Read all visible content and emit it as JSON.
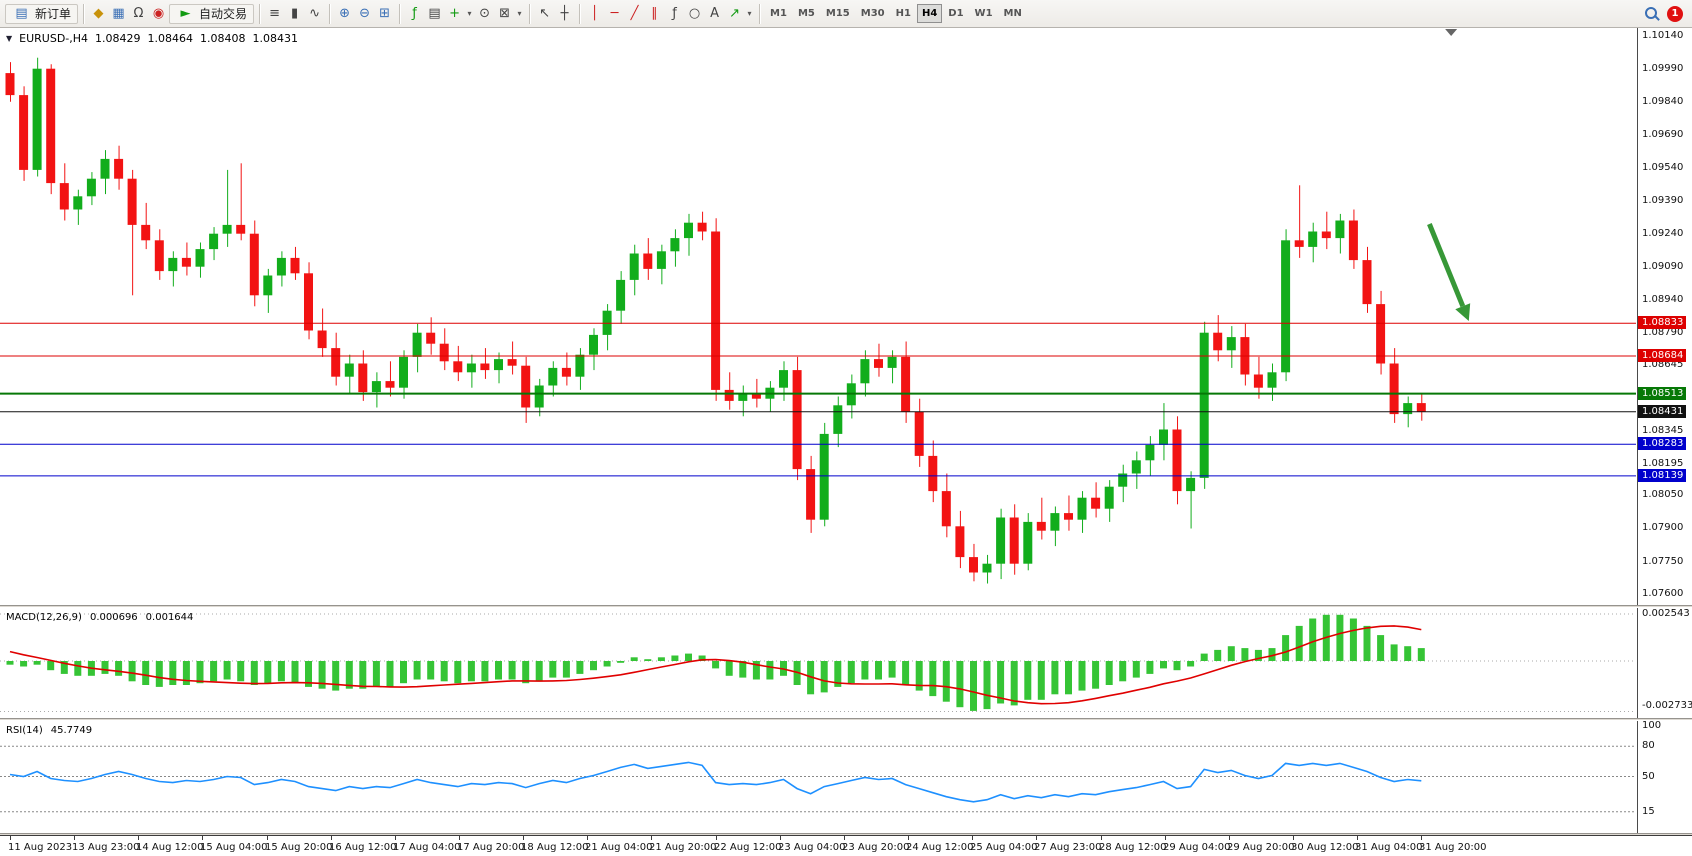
{
  "toolbar": {
    "new_order_label": "新订单",
    "autotrading_label": "自动交易",
    "timeframes": [
      "M1",
      "M5",
      "M15",
      "M30",
      "H1",
      "H4",
      "D1",
      "W1",
      "MN"
    ],
    "active_timeframe": "H4",
    "notification_count": "1"
  },
  "icons": {
    "new_order": "▤",
    "trophy": "◆",
    "charts": "▦",
    "headset": "Ω",
    "phone": "◉",
    "autotrading_play": "►",
    "bar_chart": "≡",
    "candle_chart": "▮",
    "line_chart": "∿",
    "zoom_in": "⊕",
    "zoom_out": "⊖",
    "tile_windows": "⊞",
    "indicators": "ƒ",
    "indicator_list": "▤",
    "add_indicator": "+",
    "clock": "⊙",
    "mail": "⊠",
    "cursor": "↖",
    "crosshair": "┼",
    "vline": "│",
    "hline": "─",
    "trendline": "╱",
    "channel": "∥",
    "fibonacci": "ƒ",
    "shapes": "○",
    "text": "A",
    "arrows_tool": "↗",
    "dropdown": "▾",
    "collapse_marker": "▼"
  },
  "chart_header": {
    "collapse_marker": "▼",
    "symbol_period": "EURUSD-,H4",
    "open": "1.08429",
    "high": "1.08464",
    "low": "1.08408",
    "close": "1.08431"
  },
  "price_axis_labels": [
    "1.10140",
    "1.09990",
    "1.09840",
    "1.09690",
    "1.09540",
    "1.09390",
    "1.09240",
    "1.09090",
    "1.08940",
    "1.08790",
    "1.08645",
    "1.08345",
    "1.08195",
    "1.08050",
    "1.07900",
    "1.07750",
    "1.07600"
  ],
  "time_axis_labels": [
    "11 Aug 2023",
    "13 Aug 23:00",
    "14 Aug 12:00",
    "15 Aug 04:00",
    "15 Aug 20:00",
    "16 Aug 12:00",
    "17 Aug 04:00",
    "17 Aug 20:00",
    "18 Aug 12:00",
    "21 Aug 04:00",
    "21 Aug 20:00",
    "22 Aug 12:00",
    "23 Aug 04:00",
    "23 Aug 20:00",
    "24 Aug 12:00",
    "25 Aug 04:00",
    "27 Aug 23:00",
    "28 Aug 12:00",
    "29 Aug 04:00",
    "29 Aug 20:00",
    "30 Aug 12:00",
    "31 Aug 04:00",
    "31 Aug 20:00"
  ],
  "macd_panel": {
    "label": "MACD(12,26,9)",
    "value": "0.000696",
    "signal_value": "0.001644",
    "scale_top": "0.002543",
    "scale_bottom": "-0.002733"
  },
  "rsi_panel": {
    "label": "RSI(14)",
    "value": "45.7749",
    "scale_labels": [
      "100",
      "80",
      "50",
      "15"
    ]
  },
  "chart_data": [
    {
      "type": "candlestick",
      "symbol": "EURUSD-",
      "timeframe": "H4",
      "up_color": "#12ad1c",
      "down_color": "#f21313",
      "ylim": [
        1.0755,
        1.1014
      ],
      "levels": [
        {
          "label": "1.08833",
          "price": 1.08833,
          "color": "#dd0000",
          "width": 1
        },
        {
          "label": "1.08684",
          "price": 1.08684,
          "color": "#dd0000",
          "width": 1
        },
        {
          "label": "1.08513",
          "price": 1.08513,
          "color": "#067806",
          "width": 2
        },
        {
          "label": "1.08431",
          "price": 1.08431,
          "color": "#111111",
          "width": 1
        },
        {
          "label": "1.08283",
          "price": 1.08283,
          "color": "#0000cc",
          "width": 1
        },
        {
          "label": "1.08139",
          "price": 1.08139,
          "color": "#0000cc",
          "width": 1
        }
      ],
      "annotations": [
        {
          "type": "arrow",
          "from_index": 104.6,
          "from_price": 1.09284,
          "to_index": 107.5,
          "to_price": 1.08843,
          "color": "#379837"
        }
      ],
      "shift_marker_index": 106.2,
      "ohlc": [
        [
          1.0997,
          1.1002,
          1.0984,
          1.0987
        ],
        [
          1.0987,
          1.0991,
          1.0948,
          1.0953
        ],
        [
          1.0953,
          1.1004,
          1.095,
          1.0999
        ],
        [
          1.0999,
          1.1001,
          1.0942,
          1.0947
        ],
        [
          1.0947,
          1.0956,
          1.093,
          1.0935
        ],
        [
          1.0935,
          1.0944,
          1.0928,
          1.0941
        ],
        [
          1.0941,
          1.0952,
          1.0937,
          1.0949
        ],
        [
          1.0949,
          1.0962,
          1.0942,
          1.0958
        ],
        [
          1.0958,
          1.0964,
          1.0944,
          1.0949
        ],
        [
          1.0949,
          1.0953,
          1.0896,
          1.0928
        ],
        [
          1.0928,
          1.0938,
          1.0917,
          1.0921
        ],
        [
          1.0921,
          1.0926,
          1.0903,
          1.0907
        ],
        [
          1.0907,
          1.0916,
          1.09,
          1.0913
        ],
        [
          1.0913,
          1.092,
          1.0905,
          1.0909
        ],
        [
          1.0909,
          1.092,
          1.0904,
          1.0917
        ],
        [
          1.0917,
          1.0927,
          1.0912,
          1.0924
        ],
        [
          1.0924,
          1.0953,
          1.0918,
          1.0928
        ],
        [
          1.0928,
          1.0956,
          1.0921,
          1.0924
        ],
        [
          1.0924,
          1.093,
          1.0891,
          1.0896
        ],
        [
          1.0896,
          1.0908,
          1.0888,
          1.0905
        ],
        [
          1.0905,
          1.0916,
          1.09,
          1.0913
        ],
        [
          1.0913,
          1.0918,
          1.0903,
          1.0906
        ],
        [
          1.0906,
          1.0911,
          1.0876,
          1.088
        ],
        [
          1.088,
          1.089,
          1.0868,
          1.0872
        ],
        [
          1.0872,
          1.0879,
          1.0855,
          1.0859
        ],
        [
          1.0859,
          1.0869,
          1.0851,
          1.0865
        ],
        [
          1.0865,
          1.0871,
          1.0848,
          1.0852
        ],
        [
          1.0852,
          1.0861,
          1.0845,
          1.0857
        ],
        [
          1.0857,
          1.0866,
          1.085,
          1.0854
        ],
        [
          1.0854,
          1.0871,
          1.0849,
          1.0868
        ],
        [
          1.0868,
          1.0883,
          1.0861,
          1.0879
        ],
        [
          1.0879,
          1.0886,
          1.0869,
          1.0874
        ],
        [
          1.0874,
          1.0881,
          1.0862,
          1.0866
        ],
        [
          1.0866,
          1.0873,
          1.0857,
          1.0861
        ],
        [
          1.0861,
          1.0869,
          1.0854,
          1.0865
        ],
        [
          1.0865,
          1.0872,
          1.0858,
          1.0862
        ],
        [
          1.0862,
          1.087,
          1.0856,
          1.0867
        ],
        [
          1.0867,
          1.0875,
          1.086,
          1.0864
        ],
        [
          1.0864,
          1.0868,
          1.0838,
          1.0845
        ],
        [
          1.0845,
          1.0858,
          1.0841,
          1.0855
        ],
        [
          1.0855,
          1.0866,
          1.085,
          1.0863
        ],
        [
          1.0863,
          1.087,
          1.0855,
          1.0859
        ],
        [
          1.0859,
          1.0872,
          1.0853,
          1.0869
        ],
        [
          1.0869,
          1.0881,
          1.0862,
          1.0878
        ],
        [
          1.0878,
          1.0892,
          1.0871,
          1.0889
        ],
        [
          1.0889,
          1.0907,
          1.0883,
          1.0903
        ],
        [
          1.0903,
          1.0919,
          1.0896,
          1.0915
        ],
        [
          1.0915,
          1.0922,
          1.0903,
          1.0908
        ],
        [
          1.0908,
          1.0919,
          1.0901,
          1.0916
        ],
        [
          1.0916,
          1.0926,
          1.0909,
          1.0922
        ],
        [
          1.0922,
          1.0933,
          1.0914,
          1.0929
        ],
        [
          1.0929,
          1.0934,
          1.0921,
          1.0925
        ],
        [
          1.0925,
          1.0931,
          1.0848,
          1.0853
        ],
        [
          1.0853,
          1.0861,
          1.0844,
          1.0848
        ],
        [
          1.0848,
          1.0855,
          1.0841,
          1.0851
        ],
        [
          1.0851,
          1.0858,
          1.0845,
          1.0849
        ],
        [
          1.0849,
          1.0857,
          1.0843,
          1.0854
        ],
        [
          1.0854,
          1.0866,
          1.0848,
          1.0862
        ],
        [
          1.0862,
          1.0868,
          1.0812,
          1.0817
        ],
        [
          1.0817,
          1.0823,
          1.0788,
          1.0794
        ],
        [
          1.0794,
          1.0838,
          1.0791,
          1.0833
        ],
        [
          1.0833,
          1.085,
          1.0827,
          1.0846
        ],
        [
          1.0846,
          1.086,
          1.084,
          1.0856
        ],
        [
          1.0856,
          1.0871,
          1.085,
          1.0867
        ],
        [
          1.0867,
          1.0874,
          1.0859,
          1.0863
        ],
        [
          1.0863,
          1.0871,
          1.0856,
          1.0868
        ],
        [
          1.0868,
          1.0875,
          1.0838,
          1.0843
        ],
        [
          1.0843,
          1.0849,
          1.0818,
          1.0823
        ],
        [
          1.0823,
          1.083,
          1.0802,
          1.0807
        ],
        [
          1.0807,
          1.0815,
          1.0786,
          1.0791
        ],
        [
          1.0791,
          1.0798,
          1.0772,
          1.0777
        ],
        [
          1.0777,
          1.0783,
          1.0766,
          1.077
        ],
        [
          1.077,
          1.0778,
          1.0765,
          1.0774
        ],
        [
          1.0774,
          1.0799,
          1.0767,
          1.0795
        ],
        [
          1.0795,
          1.0801,
          1.0769,
          1.0774
        ],
        [
          1.0774,
          1.0797,
          1.0771,
          1.0793
        ],
        [
          1.0793,
          1.0804,
          1.0785,
          1.0789
        ],
        [
          1.0789,
          1.08,
          1.0782,
          1.0797
        ],
        [
          1.0797,
          1.0805,
          1.0789,
          1.0794
        ],
        [
          1.0794,
          1.0807,
          1.0788,
          1.0804
        ],
        [
          1.0804,
          1.0811,
          1.0795,
          1.0799
        ],
        [
          1.0799,
          1.0812,
          1.0793,
          1.0809
        ],
        [
          1.0809,
          1.0819,
          1.0802,
          1.0815
        ],
        [
          1.0815,
          1.0825,
          1.0808,
          1.0821
        ],
        [
          1.0821,
          1.0832,
          1.0814,
          1.0828
        ],
        [
          1.0828,
          1.0847,
          1.0821,
          1.0835
        ],
        [
          1.0835,
          1.0841,
          1.0801,
          1.0807
        ],
        [
          1.0807,
          1.0816,
          1.079,
          1.0813
        ],
        [
          1.0813,
          1.0884,
          1.0808,
          1.0879
        ],
        [
          1.0879,
          1.0887,
          1.0866,
          1.0871
        ],
        [
          1.0871,
          1.0882,
          1.0863,
          1.0877
        ],
        [
          1.0877,
          1.0883,
          1.0855,
          1.086
        ],
        [
          1.086,
          1.0868,
          1.0849,
          1.0854
        ],
        [
          1.0854,
          1.0865,
          1.0848,
          1.0861
        ],
        [
          1.0861,
          1.0926,
          1.0857,
          1.0921
        ],
        [
          1.0921,
          1.0946,
          1.0913,
          1.0918
        ],
        [
          1.0918,
          1.0929,
          1.0911,
          1.0925
        ],
        [
          1.0925,
          1.0934,
          1.0917,
          1.0922
        ],
        [
          1.0922,
          1.0933,
          1.0915,
          1.093
        ],
        [
          1.093,
          1.0935,
          1.0908,
          1.0912
        ],
        [
          1.0912,
          1.0918,
          1.0888,
          1.0892
        ],
        [
          1.0892,
          1.0898,
          1.086,
          1.0865
        ],
        [
          1.0865,
          1.0872,
          1.0838,
          1.0842
        ],
        [
          1.0842,
          1.085,
          1.0836,
          1.0847
        ],
        [
          1.0847,
          1.0851,
          1.0839,
          1.08431
        ]
      ]
    },
    {
      "type": "bar",
      "name": "MACD(12,26,9)",
      "color": "#35c435",
      "signal_color": "#e00000",
      "ylim": [
        -0.002733,
        0.002543
      ],
      "values": [
        -0.0002,
        -0.0003,
        -0.0002,
        -0.0005,
        -0.0007,
        -0.0008,
        -0.0008,
        -0.0007,
        -0.0008,
        -0.0011,
        -0.0013,
        -0.0014,
        -0.0013,
        -0.0013,
        -0.0012,
        -0.0011,
        -0.001,
        -0.0011,
        -0.0013,
        -0.0012,
        -0.0011,
        -0.0012,
        -0.0014,
        -0.0015,
        -0.0016,
        -0.0015,
        -0.0015,
        -0.0014,
        -0.0014,
        -0.0012,
        -0.001,
        -0.001,
        -0.0011,
        -0.0012,
        -0.0011,
        -0.0011,
        -0.001,
        -0.001,
        -0.0012,
        -0.0011,
        -0.0009,
        -0.0009,
        -0.0007,
        -0.0005,
        -0.0003,
        -0.0001,
        0.0002,
        0.0001,
        0.0002,
        0.0003,
        0.0004,
        0.0003,
        -0.0004,
        -0.0008,
        -0.0009,
        -0.001,
        -0.001,
        -0.0008,
        -0.0013,
        -0.0018,
        -0.0017,
        -0.0014,
        -0.0012,
        -0.001,
        -0.001,
        -0.0009,
        -0.0013,
        -0.0016,
        -0.0019,
        -0.0022,
        -0.0025,
        -0.0027,
        -0.0026,
        -0.0023,
        -0.0024,
        -0.0021,
        -0.0021,
        -0.0018,
        -0.0018,
        -0.0016,
        -0.0015,
        -0.0013,
        -0.0011,
        -0.0009,
        -0.0007,
        -0.0004,
        -0.0005,
        -0.0003,
        0.0004,
        0.0006,
        0.0008,
        0.0007,
        0.0006,
        0.0007,
        0.0014,
        0.0019,
        0.0023,
        0.0025,
        0.0025,
        0.0023,
        0.0019,
        0.0014,
        0.0009,
        0.0008,
        0.0007
      ]
    },
    {
      "type": "line",
      "name": "RSI(14)",
      "color": "#1E90FF",
      "ylim": [
        0,
        100
      ],
      "levels": [
        80,
        50,
        15
      ],
      "values": [
        52,
        50,
        55,
        48,
        46,
        45,
        48,
        52,
        55,
        52,
        48,
        45,
        44,
        46,
        45,
        47,
        50,
        49,
        42,
        44,
        47,
        45,
        40,
        38,
        36,
        40,
        38,
        40,
        39,
        43,
        47,
        44,
        42,
        40,
        43,
        42,
        44,
        43,
        39,
        43,
        46,
        44,
        48,
        51,
        55,
        59,
        62,
        58,
        60,
        62,
        64,
        61,
        44,
        42,
        43,
        42,
        44,
        47,
        38,
        33,
        40,
        43,
        46,
        49,
        47,
        48,
        42,
        38,
        34,
        30,
        27,
        25,
        27,
        32,
        28,
        31,
        29,
        32,
        30,
        33,
        32,
        35,
        37,
        39,
        42,
        45,
        38,
        40,
        57,
        54,
        56,
        51,
        48,
        51,
        63,
        61,
        63,
        61,
        63,
        59,
        55,
        49,
        45,
        47,
        45.77
      ]
    }
  ]
}
